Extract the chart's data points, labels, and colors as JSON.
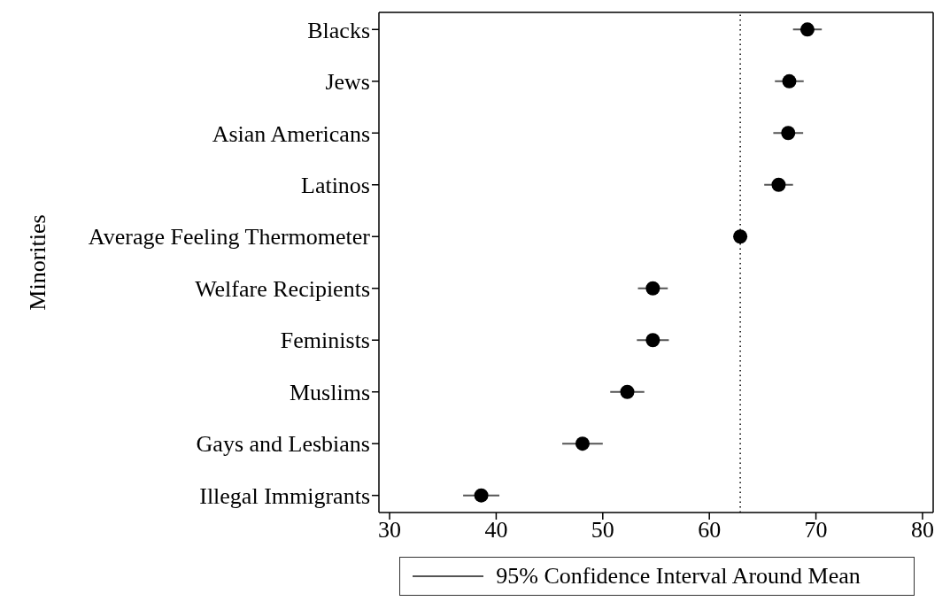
{
  "chart_data": {
    "type": "scatter",
    "orientation": "horizontal",
    "ylabel": "Minorities",
    "categories": [
      "Blacks",
      "Jews",
      "Asian Americans",
      "Latinos",
      "Average Feeling Thermometer",
      "Welfare Recipients",
      "Feminists",
      "Muslims",
      "Gays and Lesbians",
      "Illegal Immigrants"
    ],
    "series": [
      {
        "name": "95% Confidence Interval Around Mean",
        "color": "#000000",
        "values": [
          69.2,
          67.5,
          67.4,
          66.5,
          62.9,
          54.7,
          54.7,
          52.3,
          48.1,
          38.6
        ],
        "errors": [
          1.35,
          1.35,
          1.4,
          1.35,
          0.3,
          1.4,
          1.5,
          1.6,
          1.9,
          1.7
        ]
      }
    ],
    "xlim": [
      29,
      81
    ],
    "xticks": [
      30,
      40,
      50,
      60,
      70,
      80
    ],
    "ref_lines": [
      {
        "axis": "x",
        "value": 62.9,
        "line_style": "dotted",
        "color": "#000000"
      }
    ],
    "marker": "circle",
    "legend": "bottom"
  }
}
